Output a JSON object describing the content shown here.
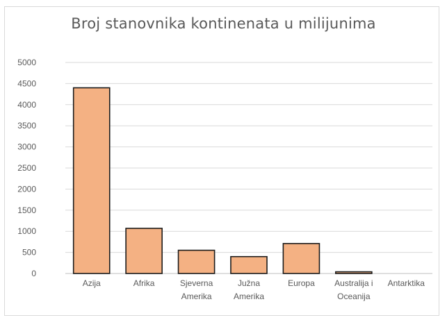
{
  "chart_data": {
    "type": "bar",
    "title": "Broj stanovnika kontinenata u milijunima",
    "xlabel": "",
    "ylabel": "",
    "categories": [
      [
        "Azija"
      ],
      [
        "Afrika"
      ],
      [
        "Sjeverna",
        "Amerika"
      ],
      [
        "Južna",
        "Amerika"
      ],
      [
        "Europa"
      ],
      [
        "Australija i",
        "Oceanija"
      ],
      [
        "Antarktika"
      ]
    ],
    "values": [
      4400,
      1070,
      550,
      400,
      710,
      40,
      0
    ],
    "ylim": [
      0,
      5000
    ],
    "yticks": [
      "0",
      "500",
      "1000",
      "1500",
      "2000",
      "2500",
      "3000",
      "3500",
      "4000",
      "4500",
      "5000"
    ],
    "grid": true,
    "legend": "none",
    "colors": {
      "bar_fill": "#f4b183",
      "bar_stroke": "#1a1a1a",
      "grid": "#d9d9d9",
      "text": "#595959"
    }
  }
}
